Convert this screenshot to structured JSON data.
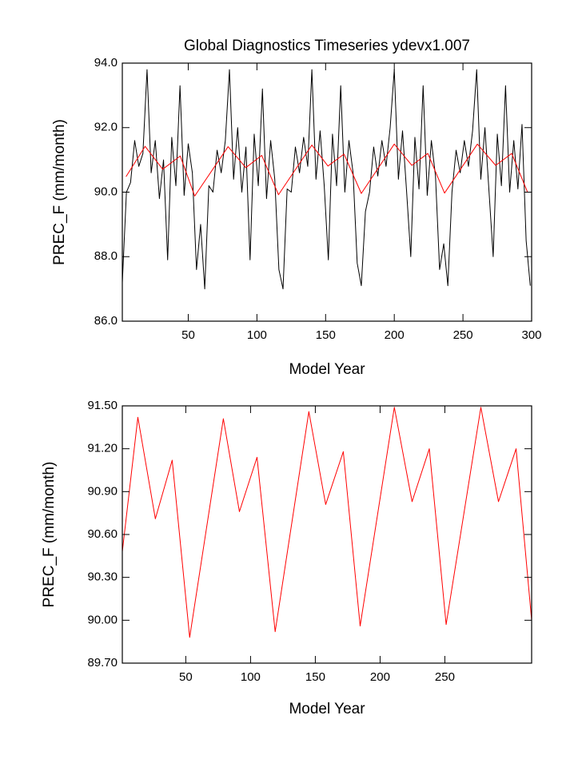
{
  "chart_data": [
    {
      "type": "line",
      "title": "Global Diagnostics Timeseries ydevx1.007",
      "xlabel": "Model Year",
      "ylabel": "PREC_F (mm/month)",
      "xlim": [
        2,
        300
      ],
      "ylim": [
        86,
        94
      ],
      "xticks": [
        50,
        100,
        150,
        200,
        250,
        300
      ],
      "yticks": [
        {
          "value": 86,
          "label": "86.0"
        },
        {
          "value": 88,
          "label": "88.0"
        },
        {
          "value": 90,
          "label": "90.0"
        },
        {
          "value": 92,
          "label": "92.0"
        },
        {
          "value": 94,
          "label": "94.0"
        }
      ],
      "series": [
        {
          "color": "#000000",
          "x": [
            2,
            5,
            8,
            11,
            14,
            17,
            20,
            23,
            26,
            29,
            32,
            35,
            38,
            41,
            44,
            47,
            50,
            53,
            56,
            59,
            62,
            65,
            68,
            71,
            74,
            77,
            80,
            83,
            86,
            89,
            92,
            95,
            98,
            101,
            104,
            107,
            110,
            113,
            116,
            119,
            122,
            125,
            128,
            131,
            134,
            137,
            140,
            143,
            146,
            149,
            152,
            155,
            158,
            161,
            164,
            167,
            170,
            173,
            176,
            179,
            182,
            185,
            188,
            191,
            194,
            197,
            200,
            203,
            206,
            209,
            212,
            215,
            218,
            221,
            224,
            227,
            230,
            233,
            236,
            239,
            242,
            245,
            248,
            251,
            254,
            257,
            260,
            263,
            266,
            269,
            272,
            275,
            278,
            281,
            284,
            287,
            290,
            293,
            296,
            299
          ],
          "values": [
            87.2,
            90.0,
            90.3,
            91.6,
            90.8,
            91.2,
            93.8,
            90.6,
            91.6,
            89.8,
            91.0,
            87.9,
            91.7,
            90.2,
            93.3,
            89.9,
            91.5,
            90.6,
            87.6,
            89.0,
            87.0,
            90.2,
            90.0,
            91.3,
            90.6,
            91.6,
            93.8,
            90.4,
            92.0,
            90.0,
            91.4,
            87.9,
            91.8,
            90.2,
            93.2,
            89.8,
            91.6,
            90.4,
            87.6,
            87.0,
            90.1,
            90.0,
            91.4,
            90.6,
            91.7,
            90.8,
            93.8,
            90.4,
            91.9,
            90.2,
            87.9,
            91.8,
            90.2,
            93.3,
            90.0,
            91.6,
            90.6,
            87.8,
            87.1,
            89.4,
            90.0,
            91.4,
            90.5,
            91.6,
            90.8,
            92.0,
            93.8,
            90.4,
            91.9,
            90.0,
            88.0,
            91.7,
            90.1,
            93.3,
            89.9,
            91.6,
            90.5,
            87.6,
            88.4,
            87.1,
            90.0,
            91.3,
            90.6,
            91.6,
            90.8,
            91.9,
            93.8,
            90.4,
            92.0,
            90.0,
            88.0,
            91.8,
            90.2,
            93.3,
            90.0,
            91.6,
            90.1,
            92.1,
            88.5,
            87.1
          ]
        },
        {
          "color": "#ff0000",
          "x": [
            4.7,
            18.6,
            31.4,
            44.2,
            54.7,
            79,
            91.9,
            103.5,
            115.7,
            140,
            151.7,
            163.4,
            176,
            200,
            212.8,
            224.4,
            236.6,
            260.5,
            273.8,
            285.5,
            297
          ],
          "values": [
            90.48,
            91.42,
            90.71,
            91.12,
            89.88,
            91.41,
            90.76,
            91.14,
            89.92,
            91.46,
            90.81,
            91.18,
            89.96,
            91.49,
            90.83,
            91.2,
            89.97,
            91.49,
            90.83,
            91.2,
            90.0
          ]
        }
      ]
    },
    {
      "type": "line",
      "xlabel": "Model Year",
      "ylabel": "PREC_F (mm/month)",
      "xlim": [
        1,
        317
      ],
      "ylim": [
        89.7,
        91.5
      ],
      "xticks": [
        50,
        100,
        150,
        200,
        250
      ],
      "yticks": [
        {
          "value": 89.7,
          "label": "89.70"
        },
        {
          "value": 90.0,
          "label": "90.00"
        },
        {
          "value": 90.3,
          "label": "90.30"
        },
        {
          "value": 90.6,
          "label": "90.60"
        },
        {
          "value": 90.9,
          "label": "90.90"
        },
        {
          "value": 91.2,
          "label": "91.20"
        },
        {
          "value": 91.5,
          "label": "91.50"
        }
      ],
      "series": [
        {
          "color": "#ff0000",
          "x": [
            1,
            13,
            26.5,
            39.5,
            53,
            79,
            91.4,
            105,
            119,
            145,
            158,
            171.6,
            184.6,
            211,
            224.7,
            238,
            251,
            277.8,
            291.4,
            305,
            317
          ],
          "values": [
            90.48,
            91.42,
            90.71,
            91.12,
            89.88,
            91.41,
            90.76,
            91.14,
            89.92,
            91.46,
            90.81,
            91.18,
            89.96,
            91.49,
            90.83,
            91.2,
            89.97,
            91.49,
            90.83,
            91.2,
            90.0
          ]
        }
      ]
    }
  ]
}
